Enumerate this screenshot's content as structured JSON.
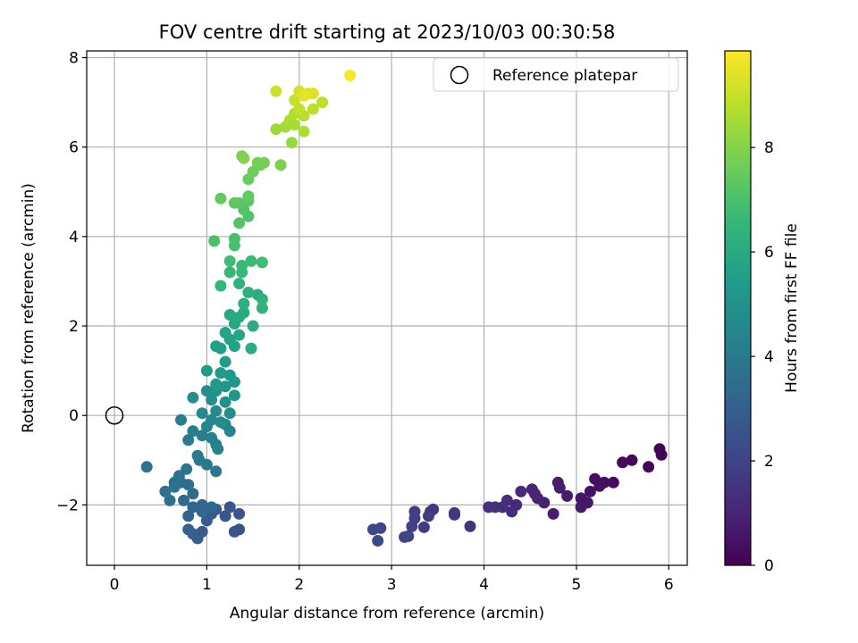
{
  "chart_data": {
    "type": "scatter",
    "title": "FOV centre drift starting at 2023/10/03 00:30:58",
    "xlabel": "Angular distance from reference (arcmin)",
    "ylabel": "Rotation from reference (arcmin)",
    "xlim": [
      -0.3,
      6.2
    ],
    "ylim": [
      -3.35,
      8.15
    ],
    "xticks": [
      0,
      1,
      2,
      3,
      4,
      5,
      6
    ],
    "xtick_labels": [
      "0",
      "1",
      "2",
      "3",
      "4",
      "5",
      "6"
    ],
    "yticks": [
      -2,
      0,
      2,
      4,
      6,
      8
    ],
    "ytick_labels": [
      "−2",
      "0",
      "2",
      "4",
      "6",
      "8"
    ],
    "grid": true,
    "legend": {
      "placement": "top-right",
      "entries": [
        "Reference platepar"
      ]
    },
    "colorbar": {
      "label": "Hours from first FF file",
      "range": [
        0,
        9.85
      ],
      "ticks": [
        0,
        2,
        4,
        6,
        8
      ],
      "tick_labels": [
        "0",
        "2",
        "4",
        "6",
        "8"
      ],
      "colormap": "viridis",
      "colors": [
        "#440154",
        "#482878",
        "#3e4989",
        "#31688e",
        "#26828e",
        "#1f9e89",
        "#35b779",
        "#6ece58",
        "#b5de2b",
        "#fde725"
      ]
    },
    "reference_point": {
      "name": "Reference platepar",
      "x": 0,
      "y": 0
    },
    "points": [
      [
        5.9,
        -0.75,
        0.05
      ],
      [
        5.92,
        -0.88,
        0.1
      ],
      [
        5.78,
        -1.15,
        0.15
      ],
      [
        5.6,
        -1.0,
        0.2
      ],
      [
        5.5,
        -1.05,
        0.25
      ],
      [
        5.4,
        -1.5,
        0.3
      ],
      [
        5.3,
        -1.5,
        0.35
      ],
      [
        5.2,
        -1.42,
        0.4
      ],
      [
        5.25,
        -1.58,
        0.45
      ],
      [
        5.15,
        -1.7,
        0.5
      ],
      [
        5.05,
        -1.85,
        0.55
      ],
      [
        5.12,
        -1.95,
        0.6
      ],
      [
        5.05,
        -2.05,
        0.65
      ],
      [
        4.9,
        -1.8,
        0.7
      ],
      [
        4.82,
        -1.62,
        0.75
      ],
      [
        4.8,
        -1.5,
        0.8
      ],
      [
        4.75,
        -2.2,
        0.85
      ],
      [
        4.65,
        -1.95,
        0.9
      ],
      [
        4.58,
        -1.85,
        0.95
      ],
      [
        4.55,
        -1.75,
        1.0
      ],
      [
        4.52,
        -1.65,
        1.05
      ],
      [
        4.4,
        -1.7,
        1.1
      ],
      [
        4.35,
        -2.0,
        1.15
      ],
      [
        4.3,
        -2.15,
        1.2
      ],
      [
        4.25,
        -1.9,
        1.25
      ],
      [
        4.2,
        -2.05,
        1.3
      ],
      [
        4.12,
        -2.05,
        1.35
      ],
      [
        4.05,
        -2.05,
        1.4
      ],
      [
        3.85,
        -2.48,
        1.5
      ],
      [
        3.68,
        -2.18,
        1.55
      ],
      [
        3.68,
        -2.22,
        1.6
      ],
      [
        3.45,
        -2.1,
        1.65
      ],
      [
        3.42,
        -2.15,
        1.7
      ],
      [
        3.4,
        -2.25,
        1.75
      ],
      [
        3.35,
        -2.5,
        1.8
      ],
      [
        3.25,
        -2.15,
        1.85
      ],
      [
        3.25,
        -2.3,
        1.9
      ],
      [
        3.22,
        -2.48,
        1.95
      ],
      [
        3.18,
        -2.7,
        2.0
      ],
      [
        3.14,
        -2.72,
        2.05
      ],
      [
        2.88,
        -2.52,
        2.1
      ],
      [
        2.8,
        -2.55,
        2.15
      ],
      [
        2.85,
        -2.8,
        2.2
      ],
      [
        1.35,
        -2.55,
        2.5
      ],
      [
        1.3,
        -2.6,
        2.55
      ],
      [
        1.35,
        -2.2,
        2.6
      ],
      [
        1.25,
        -2.05,
        2.65
      ],
      [
        1.2,
        -2.25,
        2.7
      ],
      [
        1.1,
        -2.1,
        2.75
      ],
      [
        1.05,
        -2.2,
        2.8
      ],
      [
        1.0,
        -2.35,
        2.85
      ],
      [
        0.95,
        -2.6,
        2.9
      ],
      [
        0.9,
        -2.75,
        2.95
      ],
      [
        0.85,
        -2.65,
        3.0
      ],
      [
        0.8,
        -2.55,
        3.05
      ],
      [
        0.8,
        -2.25,
        3.1
      ],
      [
        0.85,
        -2.05,
        3.15
      ],
      [
        0.95,
        -2.0,
        3.2
      ],
      [
        1.05,
        -2.05,
        3.25
      ],
      [
        0.95,
        -2.15,
        3.3
      ],
      [
        0.75,
        -1.9,
        3.35
      ],
      [
        0.85,
        -1.75,
        3.4
      ],
      [
        0.8,
        -1.55,
        3.45
      ],
      [
        0.72,
        -1.5,
        3.5
      ],
      [
        0.65,
        -1.5,
        3.55
      ],
      [
        0.6,
        -1.9,
        3.6
      ],
      [
        0.55,
        -1.7,
        3.65
      ],
      [
        0.35,
        -1.15,
        3.7
      ],
      [
        0.7,
        -1.35,
        3.75
      ],
      [
        0.65,
        -1.6,
        3.8
      ],
      [
        0.78,
        -1.2,
        3.85
      ],
      [
        1.1,
        -1.25,
        3.9
      ],
      [
        1.0,
        -1.1,
        3.95
      ],
      [
        0.92,
        -1.0,
        4.0
      ],
      [
        0.9,
        -0.9,
        4.05
      ],
      [
        0.8,
        -0.55,
        4.1
      ],
      [
        0.72,
        -0.1,
        4.15
      ],
      [
        0.85,
        -0.35,
        4.2
      ],
      [
        0.95,
        -0.45,
        4.25
      ],
      [
        1.05,
        -0.5,
        4.3
      ],
      [
        1.1,
        -0.65,
        4.35
      ],
      [
        1.12,
        -0.75,
        4.4
      ],
      [
        1.25,
        -0.35,
        4.45
      ],
      [
        1.2,
        -0.2,
        4.5
      ],
      [
        1.0,
        -0.25,
        4.55
      ],
      [
        1.05,
        -0.1,
        4.6
      ],
      [
        0.95,
        0.05,
        4.65
      ],
      [
        1.1,
        0.1,
        4.7
      ],
      [
        1.15,
        -0.15,
        4.75
      ],
      [
        1.25,
        0.05,
        4.8
      ],
      [
        0.85,
        0.4,
        4.85
      ],
      [
        1.0,
        0.55,
        4.9
      ],
      [
        1.05,
        0.35,
        4.95
      ],
      [
        1.1,
        0.55,
        5.0
      ],
      [
        1.2,
        0.3,
        5.05
      ],
      [
        1.2,
        0.65,
        5.1
      ],
      [
        1.3,
        0.45,
        5.15
      ],
      [
        1.3,
        0.75,
        5.2
      ],
      [
        1.25,
        0.9,
        5.25
      ],
      [
        1.15,
        0.95,
        5.3
      ],
      [
        1.0,
        1.0,
        5.35
      ],
      [
        1.1,
        0.7,
        5.4
      ],
      [
        1.2,
        1.2,
        5.45
      ],
      [
        1.15,
        1.5,
        5.5
      ],
      [
        1.1,
        1.55,
        5.55
      ],
      [
        1.3,
        1.55,
        5.6
      ],
      [
        1.2,
        1.85,
        5.7
      ],
      [
        1.25,
        1.7,
        5.75
      ],
      [
        1.35,
        1.8,
        5.8
      ],
      [
        1.3,
        2.05,
        5.85
      ],
      [
        1.25,
        2.25,
        5.9
      ],
      [
        1.35,
        2.2,
        5.95
      ],
      [
        1.4,
        2.3,
        6.0
      ],
      [
        1.48,
        1.5,
        6.05
      ],
      [
        1.5,
        2.0,
        6.1
      ],
      [
        1.55,
        2.7,
        6.15
      ],
      [
        1.4,
        2.5,
        6.2
      ],
      [
        1.45,
        2.75,
        6.25
      ],
      [
        1.35,
        2.95,
        6.3
      ],
      [
        1.6,
        2.6,
        6.35
      ],
      [
        1.6,
        2.4,
        6.4
      ],
      [
        1.15,
        2.9,
        6.5
      ],
      [
        1.25,
        3.2,
        6.55
      ],
      [
        1.38,
        3.2,
        6.6
      ],
      [
        1.38,
        3.35,
        6.65
      ],
      [
        1.48,
        3.45,
        6.7
      ],
      [
        1.25,
        3.45,
        6.75
      ],
      [
        1.6,
        3.42,
        6.8
      ],
      [
        1.3,
        3.8,
        6.9
      ],
      [
        1.3,
        3.95,
        6.95
      ],
      [
        1.08,
        3.9,
        7.0
      ],
      [
        1.45,
        4.45,
        7.1
      ],
      [
        1.4,
        4.6,
        7.15
      ],
      [
        1.35,
        4.3,
        7.2
      ],
      [
        1.45,
        4.8,
        7.25
      ],
      [
        1.35,
        4.75,
        7.3
      ],
      [
        1.3,
        4.75,
        7.35
      ],
      [
        1.45,
        4.9,
        7.4
      ],
      [
        1.15,
        4.85,
        7.45
      ],
      [
        1.45,
        5.28,
        7.55
      ],
      [
        1.5,
        5.45,
        7.6
      ],
      [
        1.58,
        5.6,
        7.65
      ],
      [
        1.55,
        5.65,
        7.7
      ],
      [
        1.62,
        5.65,
        7.75
      ],
      [
        1.8,
        5.6,
        7.85
      ],
      [
        1.38,
        5.8,
        7.9
      ],
      [
        1.4,
        5.75,
        7.95
      ],
      [
        1.92,
        6.1,
        8.3
      ],
      [
        1.75,
        6.4,
        8.4
      ],
      [
        1.85,
        6.45,
        8.5
      ],
      [
        1.95,
        6.5,
        8.55
      ],
      [
        1.9,
        6.6,
        8.6
      ],
      [
        2.05,
        6.35,
        8.65
      ],
      [
        1.95,
        6.75,
        8.7
      ],
      [
        2.05,
        6.7,
        8.8
      ],
      [
        2.15,
        6.85,
        8.85
      ],
      [
        2.25,
        7.0,
        8.9
      ],
      [
        2.0,
        6.85,
        8.95
      ],
      [
        1.95,
        7.05,
        9.0
      ],
      [
        1.75,
        7.25,
        9.1
      ],
      [
        2.0,
        7.25,
        9.2
      ],
      [
        2.1,
        7.2,
        9.3
      ],
      [
        2.15,
        7.2,
        9.4
      ],
      [
        2.05,
        7.15,
        9.45
      ],
      [
        2.55,
        7.6,
        9.8
      ]
    ]
  }
}
